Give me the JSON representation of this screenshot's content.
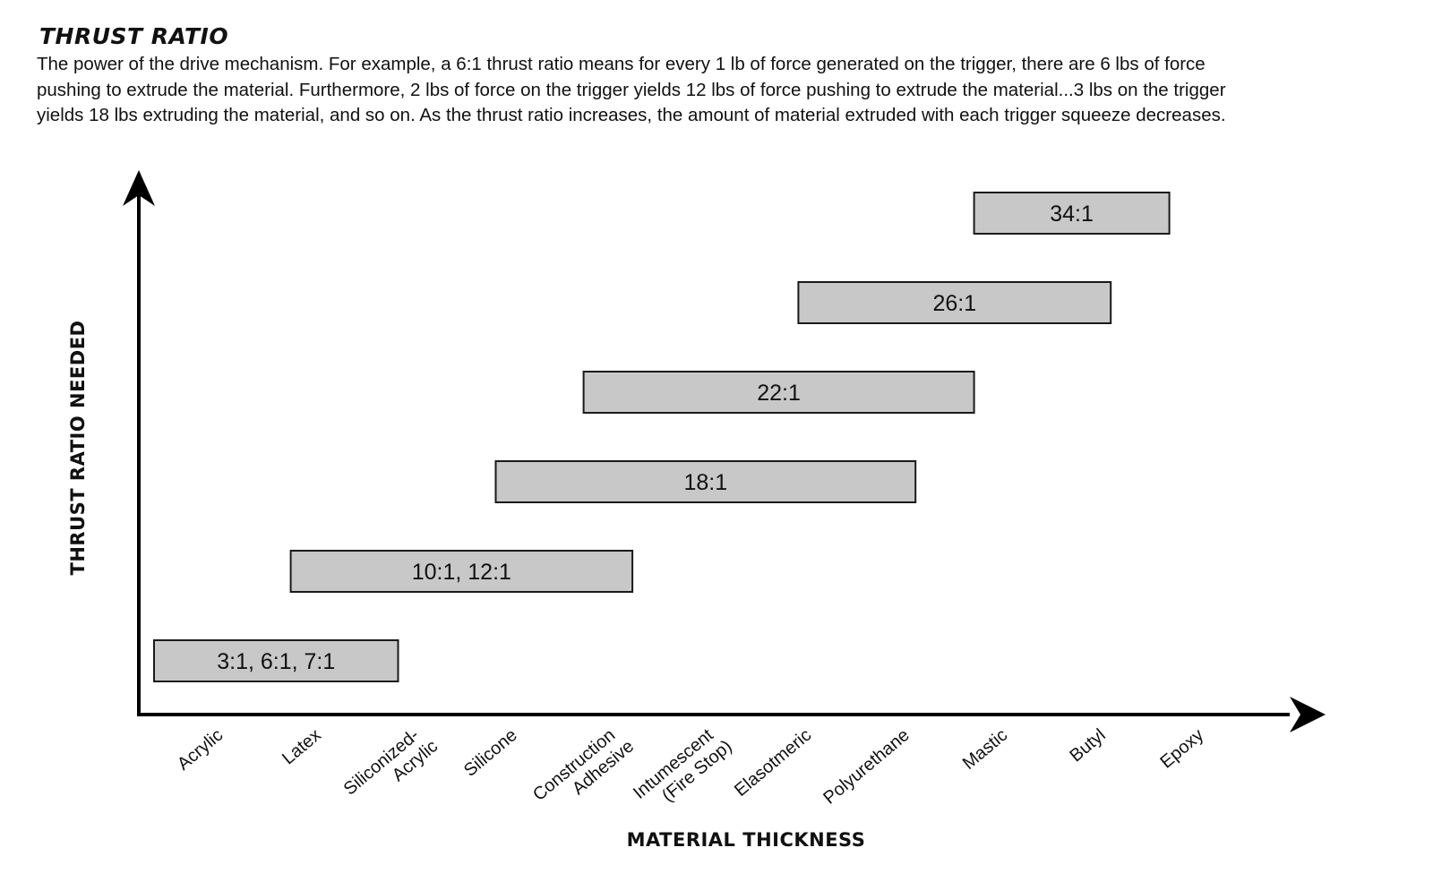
{
  "header": {
    "title": "THRUST RATIO",
    "description": "The power of the drive mechanism. For example, a 6:1 thrust ratio means for every 1 lb of force generated on the trigger, there are 6 lbs of force\npushing to extrude the material.  Furthermore, 2 lbs of force on the trigger yields 12 lbs of force pushing to extrude the material...3 lbs on the trigger\nyields 18 lbs extruding the material, and so on.  As the thrust ratio increases, the amount of material extruded with each trigger squeeze decreases."
  },
  "chart_data": {
    "type": "range-bar",
    "xlabel": "MATERIAL THICKNESS",
    "ylabel": "THRUST RATIO NEEDED",
    "categories": [
      [
        "Acrylic"
      ],
      [
        "Latex"
      ],
      [
        "Siliconized-",
        "Acrylic"
      ],
      [
        "Silicone"
      ],
      [
        "Construction",
        "Adhesive"
      ],
      [
        "Intumescent",
        "(Fire Stop)"
      ],
      [
        "Elasotmeric"
      ],
      [
        "Polyurethane"
      ],
      [
        "Mastic"
      ],
      [
        "Butyl"
      ],
      [
        "Epoxy"
      ]
    ],
    "bars": [
      {
        "label": "3:1, 6:1, 7:1",
        "start": 0,
        "end": 2.5,
        "level": 1
      },
      {
        "label": "10:1, 12:1",
        "start": 1.4,
        "end": 4.9,
        "level": 2
      },
      {
        "label": "18:1",
        "start": 3.5,
        "end": 7.8,
        "level": 3
      },
      {
        "label": "22:1",
        "start": 4.4,
        "end": 8.4,
        "level": 4
      },
      {
        "label": "26:1",
        "start": 6.6,
        "end": 9.8,
        "level": 5
      },
      {
        "label": "34:1",
        "start": 8.4,
        "end": 10.4,
        "level": 6
      }
    ],
    "colors": {
      "bar_fill": "#c8c8c8",
      "bar_stroke": "#1a1a1a",
      "axis": "#000000"
    }
  }
}
